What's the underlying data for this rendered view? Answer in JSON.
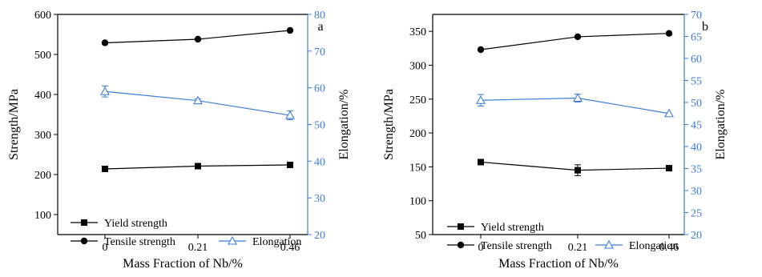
{
  "colors": {
    "left_axis": "#000000",
    "right_axis": "#3b7dd8",
    "elongation": "#3b7dd8"
  },
  "chart_data": [
    {
      "panel": "a",
      "type": "line",
      "categories": [
        "0",
        "0.21",
        "0.46"
      ],
      "xlabel": "Mass Fraction of Nb/%",
      "ylabel": "Strength/MPa",
      "ylabel_right": "Elongation/%",
      "ylim": [
        50,
        600
      ],
      "yticks": [
        100,
        200,
        300,
        400,
        500,
        600
      ],
      "ylim_right": [
        20,
        80
      ],
      "yticks_right": [
        20,
        30,
        40,
        50,
        60,
        70,
        80
      ],
      "series": [
        {
          "name": "Yield strength",
          "axis": "left",
          "marker": "square",
          "values": [
            214,
            221,
            224
          ],
          "errors": [
            0,
            0,
            0
          ]
        },
        {
          "name": "Tensile strength",
          "axis": "left",
          "marker": "circle",
          "values": [
            529,
            538,
            560
          ],
          "errors": [
            0,
            0,
            0
          ]
        },
        {
          "name": "Elongation",
          "axis": "right",
          "marker": "triangle",
          "values": [
            59,
            56.5,
            52.5
          ],
          "errors": [
            1.5,
            0.5,
            1.2
          ]
        }
      ]
    },
    {
      "panel": "b",
      "type": "line",
      "categories": [
        "0",
        "0.21",
        "0.46"
      ],
      "xlabel": "Mass Fraction of Nb/%",
      "ylabel": "Strength/MPa",
      "ylabel_right": "Elongation/%",
      "ylim": [
        50,
        375
      ],
      "yticks": [
        50,
        100,
        150,
        200,
        250,
        300,
        350
      ],
      "ylim_right": [
        20,
        70
      ],
      "yticks_right": [
        20,
        25,
        30,
        35,
        40,
        45,
        50,
        55,
        60,
        65,
        70
      ],
      "series": [
        {
          "name": "Yield strength",
          "axis": "left",
          "marker": "square",
          "values": [
            157,
            145,
            148
          ],
          "errors": [
            3,
            8,
            0
          ]
        },
        {
          "name": "Tensile strength",
          "axis": "left",
          "marker": "circle",
          "values": [
            323,
            342,
            347
          ],
          "errors": [
            0,
            0,
            0
          ]
        },
        {
          "name": "Elongation",
          "axis": "right",
          "marker": "triangle",
          "values": [
            50.5,
            51,
            47.5
          ],
          "errors": [
            1.3,
            0.9,
            0
          ]
        }
      ]
    }
  ]
}
